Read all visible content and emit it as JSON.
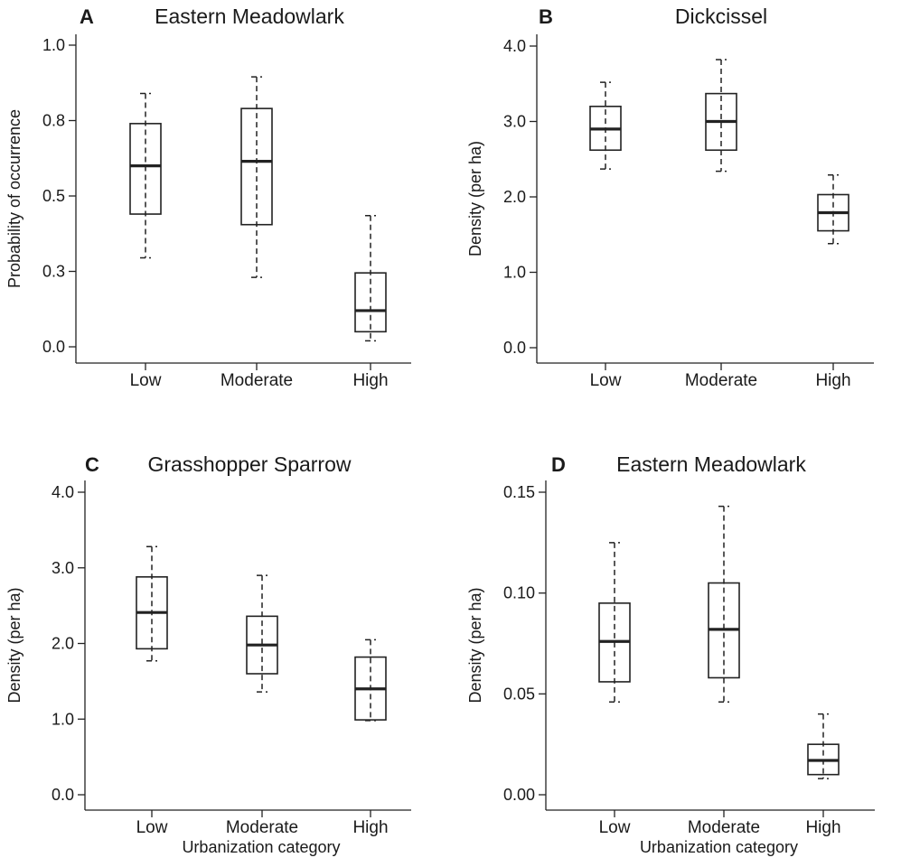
{
  "chart_data": [
    {
      "type": "box",
      "panel_letter": "A",
      "title": "Eastern Meadowlark",
      "ylabel": "Probability of occurrence",
      "xlabel": "",
      "ylim": [
        0,
        1.0
      ],
      "yticks": [
        0.0,
        0.25,
        0.5,
        0.75,
        1.0
      ],
      "ytick_labels": [
        "0.0",
        "0.3",
        "0.5",
        "0.8",
        "1.0"
      ],
      "categories": [
        "Low",
        "Moderate",
        "High"
      ],
      "boxes": [
        {
          "category": "Low",
          "whisker_low": 0.295,
          "q1": 0.44,
          "median": 0.6,
          "q3": 0.74,
          "whisker_high": 0.84
        },
        {
          "category": "Moderate",
          "whisker_low": 0.23,
          "q1": 0.405,
          "median": 0.615,
          "q3": 0.79,
          "whisker_high": 0.895
        },
        {
          "category": "High",
          "whisker_low": 0.02,
          "q1": 0.05,
          "median": 0.12,
          "q3": 0.245,
          "whisker_high": 0.435
        }
      ]
    },
    {
      "type": "box",
      "panel_letter": "B",
      "title": "Dickcissel",
      "ylabel": "Density (per ha)",
      "xlabel": "",
      "ylim": [
        0,
        4.0
      ],
      "yticks": [
        0.0,
        1.0,
        2.0,
        3.0,
        4.0
      ],
      "ytick_labels": [
        "0.0",
        "1.0",
        "2.0",
        "3.0",
        "4.0"
      ],
      "categories": [
        "Low",
        "Moderate",
        "High"
      ],
      "boxes": [
        {
          "category": "Low",
          "whisker_low": 2.37,
          "q1": 2.62,
          "median": 2.9,
          "q3": 3.2,
          "whisker_high": 3.52
        },
        {
          "category": "Moderate",
          "whisker_low": 2.34,
          "q1": 2.62,
          "median": 3.0,
          "q3": 3.37,
          "whisker_high": 3.82
        },
        {
          "category": "High",
          "whisker_low": 1.38,
          "q1": 1.55,
          "median": 1.79,
          "q3": 2.03,
          "whisker_high": 2.29
        }
      ]
    },
    {
      "type": "box",
      "panel_letter": "C",
      "title": "Grasshopper Sparrow",
      "ylabel": "Density (per ha)",
      "xlabel": "Urbanization category",
      "ylim": [
        0,
        4.0
      ],
      "yticks": [
        0.0,
        1.0,
        2.0,
        3.0,
        4.0
      ],
      "ytick_labels": [
        "0.0",
        "1.0",
        "2.0",
        "3.0",
        "4.0"
      ],
      "categories": [
        "Low",
        "Moderate",
        "High"
      ],
      "boxes": [
        {
          "category": "Low",
          "whisker_low": 1.77,
          "q1": 1.93,
          "median": 2.41,
          "q3": 2.88,
          "whisker_high": 3.28
        },
        {
          "category": "Moderate",
          "whisker_low": 1.36,
          "q1": 1.6,
          "median": 1.98,
          "q3": 2.36,
          "whisker_high": 2.9
        },
        {
          "category": "High",
          "whisker_low": 0.98,
          "q1": 0.99,
          "median": 1.4,
          "q3": 1.82,
          "whisker_high": 2.05
        }
      ]
    },
    {
      "type": "box",
      "panel_letter": "D",
      "title": "Eastern Meadowlark",
      "ylabel": "Density (per ha)",
      "xlabel": "Urbanization category",
      "ylim": [
        0,
        0.15
      ],
      "yticks": [
        0.0,
        0.05,
        0.1,
        0.15
      ],
      "ytick_labels": [
        "0.00",
        "0.05",
        "0.10",
        "0.15"
      ],
      "categories": [
        "Low",
        "Moderate",
        "High"
      ],
      "boxes": [
        {
          "category": "Low",
          "whisker_low": 0.046,
          "q1": 0.056,
          "median": 0.076,
          "q3": 0.095,
          "whisker_high": 0.125
        },
        {
          "category": "Moderate",
          "whisker_low": 0.046,
          "q1": 0.058,
          "median": 0.082,
          "q3": 0.105,
          "whisker_high": 0.143
        },
        {
          "category": "High",
          "whisker_low": 0.008,
          "q1": 0.01,
          "median": 0.017,
          "q3": 0.025,
          "whisker_high": 0.04
        }
      ]
    }
  ]
}
